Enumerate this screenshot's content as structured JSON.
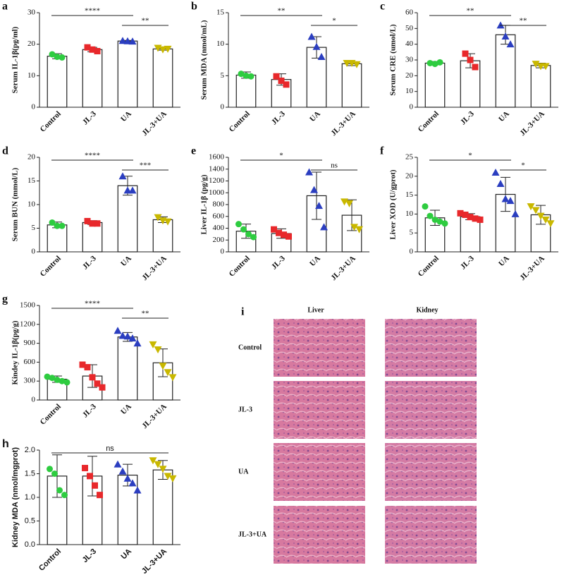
{
  "chart_data": [
    {
      "type": "bar",
      "panel": "a",
      "y_label": "Serum IL-1β(pg/ml)",
      "categories": [
        "Control",
        "JL-3",
        "UA",
        "JL-3+UA"
      ],
      "values": [
        16.2,
        18.3,
        21.0,
        18.5
      ],
      "errors": [
        0.8,
        0.7,
        0.2,
        0.4
      ],
      "points": [
        [
          16.8,
          16.0,
          15.8
        ],
        [
          19.0,
          18.3,
          17.8
        ],
        [
          21.1,
          21.0,
          20.9
        ],
        [
          18.8,
          18.3,
          18.5
        ]
      ],
      "colors": [
        "#2ecc40",
        "#e8282b",
        "#2b3ec0",
        "#c9b800"
      ],
      "markers": [
        "circle",
        "square",
        "triangle",
        "triangle-down"
      ],
      "ylim": [
        0,
        30
      ],
      "yticks": [
        0,
        10,
        20,
        30
      ],
      "significance": [
        {
          "text": "****",
          "between": [
            "Control",
            "UA"
          ]
        },
        {
          "text": "**",
          "between": [
            "UA",
            "JL-3+UA"
          ]
        }
      ]
    },
    {
      "type": "bar",
      "panel": "b",
      "y_label": "Serum MDA (nmol/mL)",
      "categories": [
        "Control",
        "JL-3",
        "UA",
        "JL-3+UA"
      ],
      "values": [
        5.1,
        4.4,
        9.5,
        6.9
      ],
      "errors": [
        0.5,
        0.9,
        1.7,
        0.3
      ],
      "points": [
        [
          5.3,
          5.0,
          4.9
        ],
        [
          4.9,
          4.2,
          3.6
        ],
        [
          11.2,
          9.6,
          8.0
        ],
        [
          7.0,
          7.0,
          6.8
        ]
      ],
      "colors": [
        "#2ecc40",
        "#e8282b",
        "#2b3ec0",
        "#c9b800"
      ],
      "markers": [
        "circle",
        "square",
        "triangle",
        "triangle-down"
      ],
      "ylim": [
        0,
        15
      ],
      "yticks": [
        0,
        5,
        10,
        15
      ],
      "significance": [
        {
          "text": "**",
          "between": [
            "Control",
            "UA"
          ]
        },
        {
          "text": "*",
          "between": [
            "UA",
            "JL-3+UA"
          ]
        }
      ]
    },
    {
      "type": "bar",
      "panel": "c",
      "y_label": "Serum CRE (umol/L)",
      "categories": [
        "Control",
        "JL-3",
        "UA",
        "JL-3+UA"
      ],
      "values": [
        28,
        29.5,
        46,
        26.5
      ],
      "errors": [
        1,
        4.5,
        6,
        1.5
      ],
      "points": [
        [
          28,
          27.5,
          28.5
        ],
        [
          34,
          30,
          25.5
        ],
        [
          52,
          45,
          40
        ],
        [
          27.5,
          26,
          26
        ]
      ],
      "colors": [
        "#2ecc40",
        "#e8282b",
        "#2b3ec0",
        "#c9b800"
      ],
      "markers": [
        "circle",
        "square",
        "triangle",
        "triangle-down"
      ],
      "ylim": [
        0,
        60
      ],
      "yticks": [
        0,
        10,
        20,
        30,
        40,
        50,
        60
      ],
      "significance": [
        {
          "text": "**",
          "between": [
            "Control",
            "UA"
          ]
        },
        {
          "text": "**",
          "between": [
            "UA",
            "JL-3+UA"
          ]
        }
      ]
    },
    {
      "type": "bar",
      "panel": "d",
      "y_label": "Serum BUN (mmol/L)",
      "categories": [
        "Control",
        "JL-3",
        "UA",
        "JL-3+UA"
      ],
      "values": [
        5.7,
        6.2,
        14,
        6.8
      ],
      "errors": [
        0.6,
        0.4,
        2,
        0.6
      ],
      "points": [
        [
          6.2,
          5.5,
          5.5
        ],
        [
          6.5,
          6.0,
          6.0
        ],
        [
          16,
          13,
          13
        ],
        [
          7.3,
          6.6,
          6.4
        ]
      ],
      "colors": [
        "#2ecc40",
        "#e8282b",
        "#2b3ec0",
        "#c9b800"
      ],
      "markers": [
        "circle",
        "square",
        "triangle",
        "triangle-down"
      ],
      "ylim": [
        0,
        20
      ],
      "yticks": [
        0,
        5,
        10,
        15,
        20
      ],
      "significance": [
        {
          "text": "****",
          "between": [
            "Control",
            "UA"
          ]
        },
        {
          "text": "***",
          "between": [
            "UA",
            "JL-3+UA"
          ]
        }
      ]
    },
    {
      "type": "bar",
      "panel": "e",
      "y_label": "Liver IL-1β (pg/g)",
      "categories": [
        "Control",
        "JL-3",
        "UA",
        "JL-3+UA"
      ],
      "values": [
        350,
        310,
        950,
        620
      ],
      "errors": [
        120,
        80,
        400,
        260
      ],
      "points": [
        [
          470,
          380,
          300,
          250
        ],
        [
          380,
          320,
          290,
          260
        ],
        [
          1350,
          1050,
          780,
          420
        ],
        [
          850,
          820,
          420,
          380
        ]
      ],
      "colors": [
        "#2ecc40",
        "#e8282b",
        "#2b3ec0",
        "#c9b800"
      ],
      "markers": [
        "circle",
        "square",
        "triangle",
        "triangle-down"
      ],
      "ylim": [
        0,
        1600
      ],
      "yticks": [
        0,
        200,
        400,
        600,
        800,
        1000,
        1200,
        1400,
        1600
      ],
      "significance": [
        {
          "text": "*",
          "between": [
            "Control",
            "UA"
          ]
        },
        {
          "text": "ns",
          "between": [
            "UA",
            "JL-3+UA"
          ]
        }
      ]
    },
    {
      "type": "bar",
      "panel": "f",
      "y_label": "Liver XOD (U/gprot)",
      "categories": [
        "Control",
        "JL-3",
        "UA",
        "JL-3+UA"
      ],
      "values": [
        9,
        9.3,
        15.2,
        9.8
      ],
      "errors": [
        2,
        0.8,
        4.5,
        2.5
      ],
      "points": [
        [
          12,
          9.5,
          8.5,
          8,
          7.5
        ],
        [
          10.2,
          9.8,
          9.2,
          8.8,
          8.5
        ],
        [
          21,
          18,
          14,
          13.5,
          10
        ],
        [
          12,
          11,
          9.5,
          8.5,
          7.5
        ]
      ],
      "colors": [
        "#2ecc40",
        "#e8282b",
        "#2b3ec0",
        "#c9b800"
      ],
      "markers": [
        "circle",
        "square",
        "triangle",
        "triangle-down"
      ],
      "ylim": [
        0,
        25
      ],
      "yticks": [
        0,
        5,
        10,
        15,
        20,
        25
      ],
      "significance": [
        {
          "text": "*",
          "between": [
            "Control",
            "UA"
          ]
        },
        {
          "text": "*",
          "between": [
            "UA",
            "JL-3+UA"
          ]
        }
      ]
    },
    {
      "type": "bar",
      "panel": "g",
      "y_label": "Kindey IL-1β(pg/g)",
      "categories": [
        "Control",
        "JL-3",
        "UA",
        "JL-3+UA"
      ],
      "values": [
        330,
        380,
        1000,
        590
      ],
      "errors": [
        50,
        180,
        70,
        220
      ],
      "points": [
        [
          370,
          350,
          320,
          300,
          280
        ],
        [
          560,
          520,
          360,
          260,
          200
        ],
        [
          1100,
          1020,
          1010,
          980,
          900
        ],
        [
          880,
          800,
          540,
          440,
          360
        ]
      ],
      "colors": [
        "#2ecc40",
        "#e8282b",
        "#2b3ec0",
        "#c9b800"
      ],
      "markers": [
        "circle",
        "square",
        "triangle",
        "triangle-down"
      ],
      "ylim": [
        0,
        1500
      ],
      "yticks": [
        0,
        300,
        600,
        900,
        1200,
        1500
      ],
      "significance": [
        {
          "text": "****",
          "between": [
            "Control",
            "UA"
          ]
        },
        {
          "text": "**",
          "between": [
            "UA",
            "JL-3+UA"
          ]
        }
      ]
    },
    {
      "type": "bar",
      "panel": "h",
      "y_label": "Kidney MDA (nmol/mgprot)",
      "categories": [
        "Control",
        "JL-3",
        "UA",
        "JL-3+UA"
      ],
      "values": [
        1.45,
        1.45,
        1.47,
        1.58
      ],
      "errors": [
        0.45,
        0.42,
        0.23,
        0.2
      ],
      "points": [
        [
          1.6,
          1.5,
          1.15,
          1.05
        ],
        [
          1.62,
          1.45,
          1.25,
          1.05
        ],
        [
          1.7,
          1.55,
          1.4,
          1.3,
          1.15
        ],
        [
          1.78,
          1.7,
          1.6,
          1.45,
          1.4
        ]
      ],
      "colors": [
        "#2ecc40",
        "#e8282b",
        "#2b3ec0",
        "#c9b800"
      ],
      "markers": [
        "circle",
        "square",
        "triangle",
        "triangle-down"
      ],
      "ylim": [
        0,
        2
      ],
      "yticks": [
        {
          "value": 0,
          "label": "0.0"
        },
        0.5,
        {
          "value": 1,
          "label": "1.0"
        },
        1.5,
        {
          "value": 2,
          "label": "2.0"
        }
      ],
      "significance": [
        {
          "text": "ns",
          "between": [
            "Control",
            "JL-3+UA"
          ]
        }
      ]
    }
  ],
  "histology": {
    "panel": "i",
    "columns": [
      "Liver",
      "Kidney"
    ],
    "rows": [
      "Control",
      "JL-3",
      "UA",
      "JL-3+UA"
    ]
  }
}
